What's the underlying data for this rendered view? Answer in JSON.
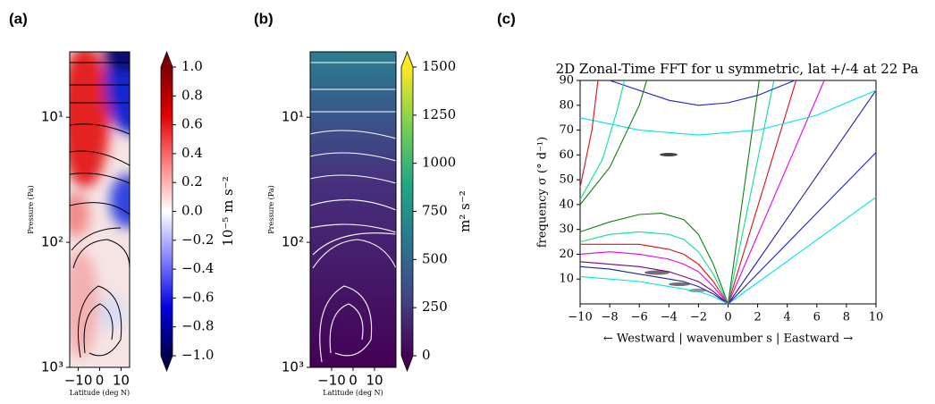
{
  "chart_data": [
    {
      "type": "contour",
      "panel_label": "(a)",
      "xlabel": "Latitude (deg N)",
      "ylabel": "Pressure (Pa)",
      "xlim": [
        -14,
        14
      ],
      "xticks": [
        {
          "value": -10,
          "label": "−10"
        },
        0,
        10
      ],
      "ylim": [
        1000,
        3
      ],
      "yscale": "log",
      "yticks": [
        {
          "value": 10,
          "label": "10¹"
        },
        {
          "value": 100,
          "label": "10²"
        },
        {
          "value": 1000,
          "label": "10³"
        }
      ],
      "colormap": "seismic",
      "colorbar": {
        "label": "10⁻⁵ m s⁻²",
        "lim": [
          -1,
          1
        ],
        "ticks": [
          {
            "value": -1,
            "label": "−1.0"
          },
          {
            "value": -0.8,
            "label": "−0.8"
          },
          {
            "value": -0.6,
            "label": "−0.6"
          },
          {
            "value": -0.4,
            "label": "−0.4"
          },
          {
            "value": -0.2,
            "label": "−0.2"
          },
          {
            "value": 0,
            "label": "0.0"
          },
          {
            "value": 0.2,
            "label": "0.2"
          },
          {
            "value": 0.4,
            "label": "0.4"
          },
          {
            "value": 0.6,
            "label": "0.6"
          },
          {
            "value": 0.8,
            "label": "0.8"
          },
          {
            "value": 1,
            "label": "1.0"
          }
        ]
      }
    },
    {
      "type": "contour",
      "panel_label": "(b)",
      "xlabel": "Latitude (deg N)",
      "ylabel": "Pressure (Pa)",
      "xlim": [
        -20,
        20
      ],
      "xticks": [
        {
          "value": -10,
          "label": "−10"
        },
        0,
        10
      ],
      "ylim": [
        1000,
        3
      ],
      "yscale": "log",
      "yticks": [
        {
          "value": 10,
          "label": "10¹"
        },
        {
          "value": 100,
          "label": "10²"
        },
        {
          "value": 1000,
          "label": "10³"
        }
      ],
      "colormap": "viridis",
      "colorbar": {
        "label": "m² s⁻²",
        "lim": [
          0,
          1500
        ],
        "ticks": [
          0,
          250,
          500,
          750,
          1000,
          1250,
          1500
        ]
      }
    },
    {
      "type": "line",
      "panel_label": "(c)",
      "title": "2D Zonal-Time FFT for u symmetric, lat +/-4 at 22 Pa",
      "xlabel": "← Westward | wavenumber s | Eastward →",
      "ylabel": "frequency σ (° d⁻¹)",
      "xlim": [
        -10,
        10
      ],
      "ylim": [
        0,
        90
      ],
      "xticks": [
        {
          "value": -10,
          "label": "−10"
        },
        {
          "value": -8,
          "label": "−8"
        },
        {
          "value": -6,
          "label": "−6"
        },
        {
          "value": -4,
          "label": "−4"
        },
        {
          "value": -2,
          "label": "−2"
        },
        0,
        2,
        4,
        6,
        8,
        10
      ],
      "yticks": [
        10,
        20,
        30,
        40,
        50,
        60,
        70,
        80,
        90
      ],
      "series": [
        {
          "color": "#00e5e5",
          "x": [
            0,
            10
          ],
          "y": [
            0,
            43
          ]
        },
        {
          "color": "#1f1fd6",
          "x": [
            0,
            10
          ],
          "y": [
            0,
            61
          ]
        },
        {
          "color": "#2020a0",
          "x": [
            0,
            10
          ],
          "y": [
            0,
            86
          ]
        },
        {
          "color": "#e600e6",
          "x": [
            0,
            6.5
          ],
          "y": [
            0,
            90
          ]
        },
        {
          "color": "#e01010",
          "x": [
            0,
            4.6
          ],
          "y": [
            0,
            90
          ]
        },
        {
          "color": "#10e090",
          "x": [
            0,
            3.1
          ],
          "y": [
            0,
            90
          ]
        },
        {
          "color": "#108010",
          "x": [
            0,
            2.1
          ],
          "y": [
            0,
            90
          ]
        },
        {
          "color": "#00e5e5",
          "x": [
            -10,
            -6,
            -2,
            2,
            6,
            10
          ],
          "y": [
            75,
            70,
            68,
            70,
            76,
            86
          ]
        },
        {
          "color": "#1f1fd6",
          "x": [
            -8,
            -4,
            -2,
            0,
            2,
            4.5
          ],
          "y": [
            90,
            82,
            80,
            81,
            84,
            90
          ]
        },
        {
          "color": "#108010",
          "x": [
            -10,
            -8,
            -6,
            -4.5,
            -3,
            -2,
            -1,
            0
          ],
          "y": [
            29,
            33,
            36,
            36.5,
            34,
            28,
            16,
            0
          ]
        },
        {
          "color": "#10e090",
          "x": [
            -10,
            -8,
            -6,
            -4,
            -3,
            -2,
            -1,
            0
          ],
          "y": [
            25,
            28,
            29,
            28,
            26,
            21,
            12,
            0
          ]
        },
        {
          "color": "#e01010",
          "x": [
            -10,
            -8,
            -6,
            -4,
            -3,
            -2,
            -1,
            0
          ],
          "y": [
            24,
            24,
            24,
            22,
            20,
            16,
            9,
            0
          ]
        },
        {
          "color": "#e600e6",
          "x": [
            -10,
            -8,
            -6,
            -4,
            -3,
            -2,
            -1,
            0
          ],
          "y": [
            20,
            21,
            20,
            18,
            16,
            13,
            7,
            0
          ]
        },
        {
          "color": "#800080",
          "x": [
            -10,
            -8,
            -6,
            -4,
            -3,
            -2,
            -1,
            0
          ],
          "y": [
            17,
            16,
            15,
            13,
            11,
            9,
            5,
            0
          ]
        },
        {
          "color": "#2020a0",
          "x": [
            -10,
            -8,
            -6,
            -4,
            -3,
            -2,
            -1,
            0
          ],
          "y": [
            15,
            14,
            12,
            10,
            9,
            7,
            4,
            0
          ]
        },
        {
          "color": "#00e5e5",
          "x": [
            -10,
            -8,
            -6,
            -4,
            -3,
            -2,
            -1,
            0
          ],
          "y": [
            11,
            10,
            9,
            7,
            6,
            5,
            3,
            0
          ]
        },
        {
          "color": "#108010",
          "x": [
            -10,
            -8,
            -6,
            -5.5
          ],
          "y": [
            40,
            55,
            80,
            90
          ]
        },
        {
          "color": "#10e090",
          "x": [
            -10,
            -8.5,
            -7.5,
            -7
          ],
          "y": [
            42,
            58,
            78,
            90
          ]
        },
        {
          "color": "#e01010",
          "x": [
            -10,
            -9.2,
            -8.8
          ],
          "y": [
            47,
            70,
            90
          ]
        }
      ]
    }
  ]
}
